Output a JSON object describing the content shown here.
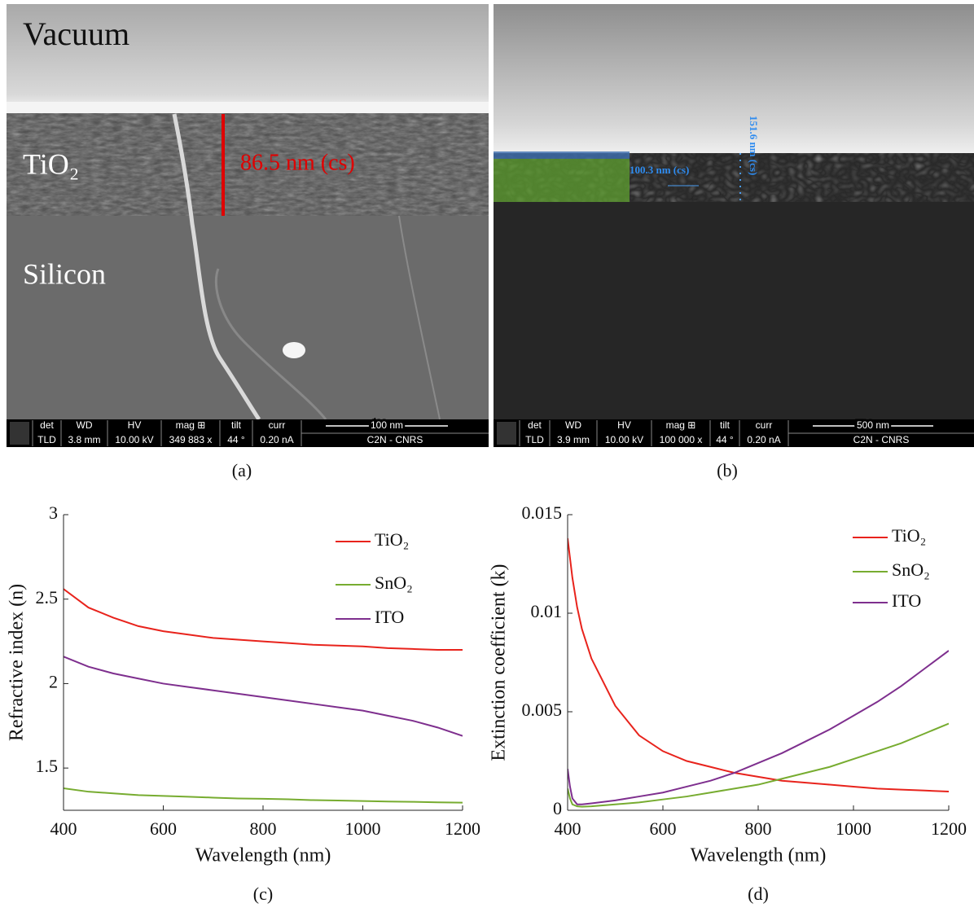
{
  "sem": [
    {
      "caption": "(a)",
      "labels": [
        "Vacuum",
        "TiO₂",
        "86.5 nm (cs)",
        "Silicon"
      ],
      "info_bar": {
        "headers": [
          "det",
          "WD",
          "HV",
          "mag ⊞",
          "tilt",
          "curr"
        ],
        "values": [
          "TLD",
          "3.8 mm",
          "10.00 kV",
          "349 883 x",
          "44 °",
          "0.20 nA"
        ],
        "scale": "100 nm",
        "credit": "C2N - CNRS"
      }
    },
    {
      "caption": "(b)",
      "labels": [
        "100.3 nm (cs)",
        "151.6 nm (cs)"
      ],
      "info_bar": {
        "headers": [
          "det",
          "WD",
          "HV",
          "mag ⊞",
          "tilt",
          "curr"
        ],
        "values": [
          "TLD",
          "3.9 mm",
          "10.00 kV",
          "100 000 x",
          "44 °",
          "0.20 nA"
        ],
        "scale": "500 nm",
        "credit": "C2N - CNRS"
      }
    }
  ],
  "chart_data": [
    {
      "type": "line",
      "caption": "(c)",
      "xlabel": "Wavelength (nm)",
      "ylabel": "Refractive index (n)",
      "xlim": [
        400,
        1200
      ],
      "xticks": [
        400,
        600,
        800,
        1000,
        1200
      ],
      "ylim": [
        1.25,
        3
      ],
      "yticks": [
        1.5,
        2,
        2.5,
        3
      ],
      "grid": false,
      "legend": "northeast",
      "x": [
        400,
        450,
        500,
        550,
        600,
        650,
        700,
        750,
        800,
        850,
        900,
        950,
        1000,
        1050,
        1100,
        1150,
        1200
      ],
      "series": [
        {
          "name": "TiO₂",
          "color": "#e8231c",
          "values": [
            2.56,
            2.45,
            2.39,
            2.34,
            2.31,
            2.29,
            2.27,
            2.26,
            2.25,
            2.24,
            2.23,
            2.225,
            2.22,
            2.21,
            2.205,
            2.2,
            2.2
          ]
        },
        {
          "name": "SnO₂",
          "color": "#77ac30",
          "values": [
            1.38,
            1.36,
            1.35,
            1.34,
            1.335,
            1.33,
            1.325,
            1.32,
            1.318,
            1.315,
            1.31,
            1.308,
            1.305,
            1.302,
            1.3,
            1.297,
            1.295
          ]
        },
        {
          "name": "ITO",
          "color": "#7e2f8e",
          "values": [
            2.16,
            2.1,
            2.06,
            2.03,
            2.0,
            1.98,
            1.96,
            1.94,
            1.92,
            1.9,
            1.88,
            1.86,
            1.84,
            1.81,
            1.78,
            1.74,
            1.69
          ]
        }
      ]
    },
    {
      "type": "line",
      "caption": "(d)",
      "xlabel": "Wavelength (nm)",
      "ylabel": "Extinction coefficient (k)",
      "xlim": [
        400,
        1200
      ],
      "xticks": [
        400,
        600,
        800,
        1000,
        1200
      ],
      "ylim": [
        0,
        0.015
      ],
      "yticks": [
        0,
        0.005,
        0.01,
        0.015
      ],
      "grid": false,
      "legend": "northeast",
      "x": [
        400,
        405,
        410,
        420,
        430,
        450,
        500,
        550,
        600,
        650,
        700,
        750,
        800,
        850,
        900,
        950,
        1000,
        1050,
        1100,
        1150,
        1200
      ],
      "series": [
        {
          "name": "TiO₂",
          "color": "#e8231c",
          "values": [
            0.0138,
            0.0128,
            0.0118,
            0.0103,
            0.0092,
            0.0077,
            0.0053,
            0.0038,
            0.003,
            0.0025,
            0.0022,
            0.0019,
            0.0017,
            0.0015,
            0.0014,
            0.0013,
            0.0012,
            0.0011,
            0.00105,
            0.001,
            0.00095
          ]
        },
        {
          "name": "SnO₂",
          "color": "#77ac30",
          "values": [
            0.0011,
            0.0006,
            0.0003,
            0.0002,
            0.00018,
            0.0002,
            0.0003,
            0.0004,
            0.00055,
            0.0007,
            0.0009,
            0.0011,
            0.0013,
            0.0016,
            0.0019,
            0.0022,
            0.0026,
            0.003,
            0.0034,
            0.0039,
            0.0044
          ]
        },
        {
          "name": "ITO",
          "color": "#7e2f8e",
          "values": [
            0.0021,
            0.0012,
            0.0006,
            0.0003,
            0.0003,
            0.00035,
            0.0005,
            0.0007,
            0.0009,
            0.0012,
            0.0015,
            0.0019,
            0.0024,
            0.0029,
            0.0035,
            0.0041,
            0.0048,
            0.0055,
            0.0063,
            0.0072,
            0.0081
          ]
        }
      ]
    }
  ]
}
